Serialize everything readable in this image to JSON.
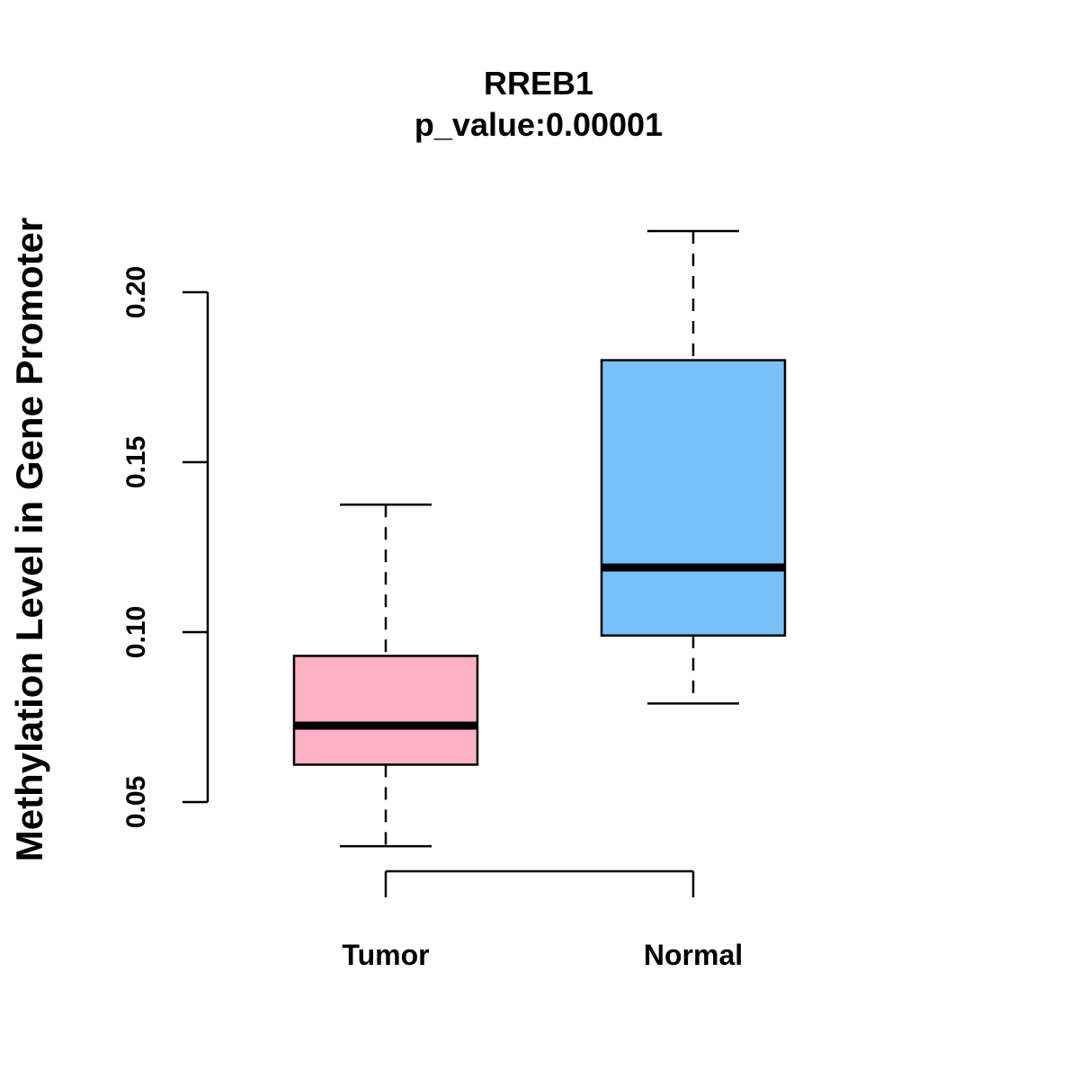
{
  "chart_data": {
    "type": "boxplot",
    "title": "RREB1",
    "subtitle": "p_value:0.00001",
    "ylabel": "Methylation Level in Gene Promoter",
    "xlabel": "",
    "ylim": [
      0.025,
      0.225
    ],
    "yticks": [
      "0.05",
      "0.10",
      "0.15",
      "0.20"
    ],
    "categories": [
      "Tumor",
      "Normal"
    ],
    "boxes": [
      {
        "label": "Tumor",
        "color": "#FBB1C3",
        "min": 0.037,
        "q1": 0.061,
        "median": 0.0725,
        "q3": 0.093,
        "max": 0.1375
      },
      {
        "label": "Normal",
        "color": "#78C1F8",
        "min": 0.079,
        "q1": 0.099,
        "median": 0.119,
        "q3": 0.18,
        "max": 0.218
      }
    ],
    "grid": false,
    "legend": "none"
  }
}
